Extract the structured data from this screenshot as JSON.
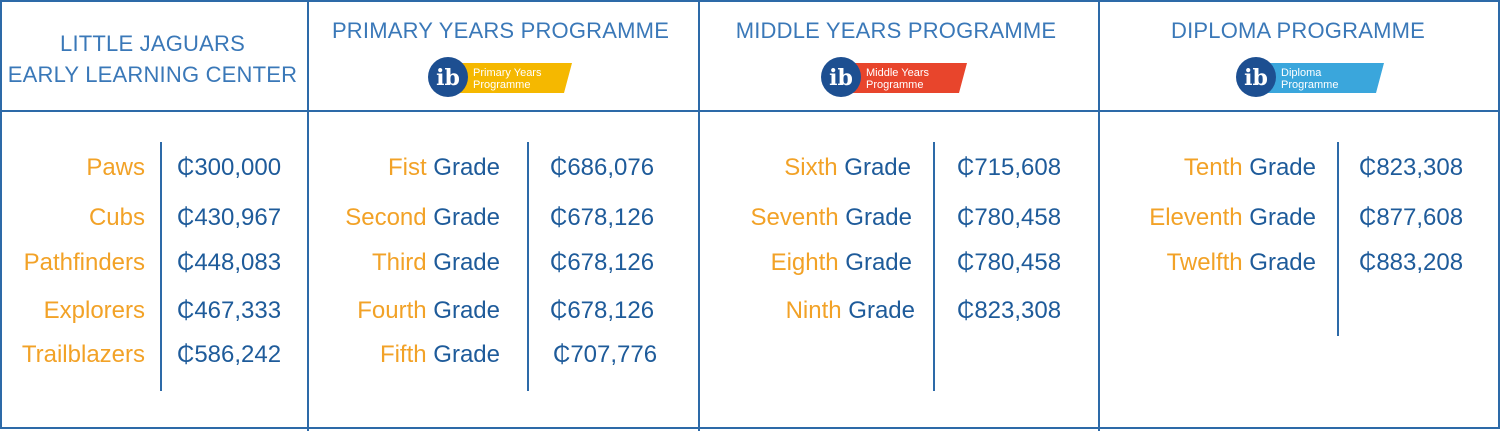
{
  "columns": [
    {
      "title_lines": [
        "LITTLE JAGUARS",
        "EARLY LEARNING CENTER"
      ],
      "rows": [
        {
          "name": "Paws",
          "suffix": "",
          "price": "₵300,000"
        },
        {
          "name": "Cubs",
          "suffix": "",
          "price": "₵430,967"
        },
        {
          "name": "Pathfinders",
          "suffix": "",
          "price": "₵448,083"
        },
        {
          "name": "Explorers",
          "suffix": "",
          "price": "₵467,333"
        },
        {
          "name": "Trailblazers",
          "suffix": "",
          "price": "₵586,242"
        }
      ]
    },
    {
      "title": "PRIMARY YEARS PROGRAMME",
      "badge": {
        "letters": "ib",
        "line1": "Primary Years",
        "line2": "Programme",
        "color": "#f5b800"
      },
      "rows": [
        {
          "name": "Fist",
          "suffix": "Grade",
          "price": "₵686,076"
        },
        {
          "name": "Second",
          "suffix": "Grade",
          "price": "₵678,126"
        },
        {
          "name": "Third",
          "suffix": "Grade",
          "price": "₵678,126"
        },
        {
          "name": "Fourth",
          "suffix": "Grade",
          "price": "₵678,126"
        },
        {
          "name": "Fifth",
          "suffix": "Grade",
          "price": "₵707,776"
        }
      ]
    },
    {
      "title": "MIDDLE YEARS PROGRAMME",
      "badge": {
        "letters": "ib",
        "line1": "Middle Years",
        "line2": "Programme",
        "color": "#e8452c"
      },
      "rows": [
        {
          "name": "Sixth",
          "suffix": "Grade",
          "price": "₵715,608"
        },
        {
          "name": "Seventh",
          "suffix": "Grade",
          "price": "₵780,458"
        },
        {
          "name": "Eighth",
          "suffix": "Grade",
          "price": "₵780,458"
        },
        {
          "name": "Ninth",
          "suffix": "Grade",
          "price": "₵823,308"
        }
      ]
    },
    {
      "title": "DIPLOMA PROGRAMME",
      "badge": {
        "letters": "ib",
        "line1": "Diploma",
        "line2": "Programme",
        "color": "#3aa6dc"
      },
      "rows": [
        {
          "name": "Tenth",
          "suffix": "Grade",
          "price": "₵823,308"
        },
        {
          "name": "Eleventh",
          "suffix": "Grade",
          "price": "₵877,608"
        },
        {
          "name": "Twelfth",
          "suffix": "Grade",
          "price": "₵883,208"
        }
      ]
    }
  ],
  "colors": {
    "border": "#2d6aa8",
    "title": "#3a78b8",
    "label_accent": "#f2a227",
    "label_text": "#1e5b9a",
    "ib_circle": "#1d4f91"
  }
}
